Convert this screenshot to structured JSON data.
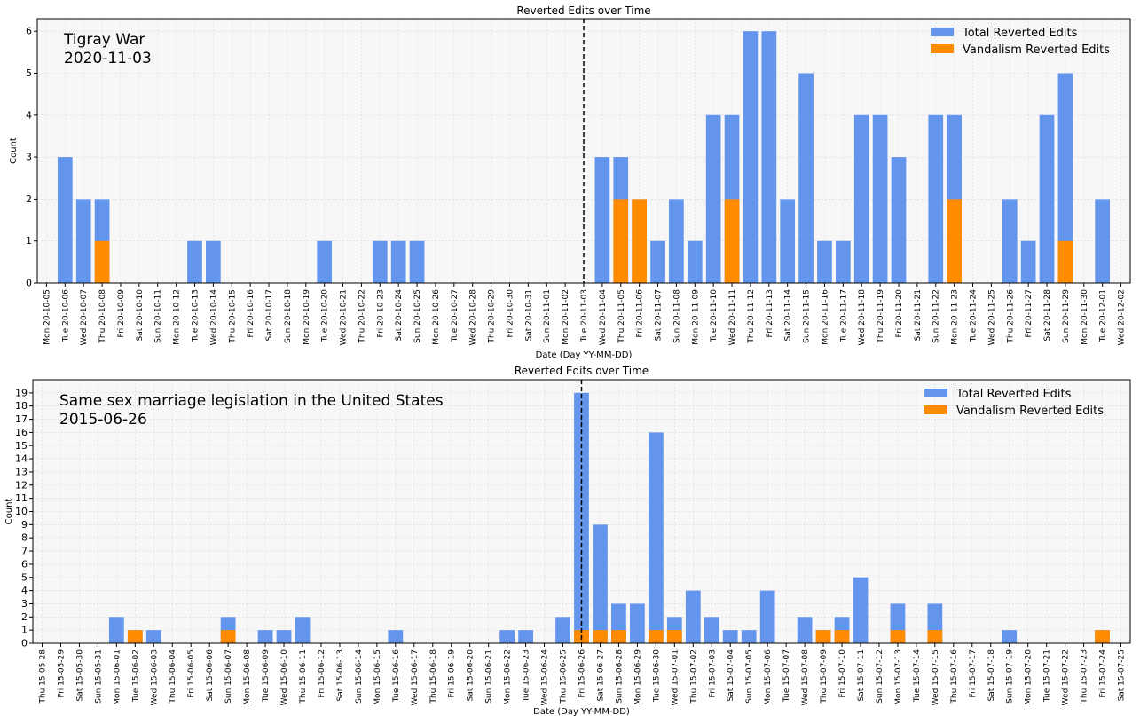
{
  "chart_data": [
    {
      "type": "bar",
      "title": "Reverted Edits over Time",
      "annotation": [
        "Tigray War",
        "2020-11-03"
      ],
      "xlabel": "Date (Day YY-MM-DD)",
      "ylabel": "Count",
      "ylim": [
        0,
        6.3
      ],
      "yticks": [
        0,
        1,
        2,
        3,
        4,
        5,
        6
      ],
      "event_date": "20-11-03",
      "legend_position": "top-right",
      "grid": true,
      "categories": [
        "Mon 20-10-05",
        "Tue 20-10-06",
        "Wed 20-10-07",
        "Thu 20-10-08",
        "Fri 20-10-09",
        "Sat 20-10-10",
        "Sun 20-10-11",
        "Mon 20-10-12",
        "Tue 20-10-13",
        "Wed 20-10-14",
        "Thu 20-10-15",
        "Fri 20-10-16",
        "Sat 20-10-17",
        "Sun 20-10-18",
        "Mon 20-10-19",
        "Tue 20-10-20",
        "Wed 20-10-21",
        "Thu 20-10-22",
        "Fri 20-10-23",
        "Sat 20-10-24",
        "Sun 20-10-25",
        "Mon 20-10-26",
        "Tue 20-10-27",
        "Wed 20-10-28",
        "Thu 20-10-29",
        "Fri 20-10-30",
        "Sat 20-10-31",
        "Sun 20-11-01",
        "Mon 20-11-02",
        "Tue 20-11-03",
        "Wed 20-11-04",
        "Thu 20-11-05",
        "Fri 20-11-06",
        "Sat 20-11-07",
        "Sun 20-11-08",
        "Mon 20-11-09",
        "Tue 20-11-10",
        "Wed 20-11-11",
        "Thu 20-11-12",
        "Fri 20-11-13",
        "Sat 20-11-14",
        "Sun 20-11-15",
        "Mon 20-11-16",
        "Tue 20-11-17",
        "Wed 20-11-18",
        "Thu 20-11-19",
        "Fri 20-11-20",
        "Sat 20-11-21",
        "Sun 20-11-22",
        "Mon 20-11-23",
        "Tue 20-11-24",
        "Wed 20-11-25",
        "Thu 20-11-26",
        "Fri 20-11-27",
        "Sat 20-11-28",
        "Sun 20-11-29",
        "Mon 20-11-30",
        "Tue 20-12-01",
        "Wed 20-12-02"
      ],
      "series": [
        {
          "name": "Total Reverted Edits",
          "color": "#6495ED",
          "values": [
            0,
            3,
            2,
            2,
            0,
            0,
            0,
            0,
            1,
            1,
            0,
            0,
            0,
            0,
            0,
            1,
            0,
            0,
            1,
            1,
            1,
            0,
            0,
            0,
            0,
            0,
            0,
            0,
            0,
            0,
            3,
            3,
            2,
            1,
            2,
            1,
            4,
            4,
            6,
            6,
            2,
            5,
            1,
            1,
            4,
            4,
            3,
            0,
            4,
            4,
            0,
            0,
            2,
            1,
            4,
            5,
            0,
            2,
            0
          ]
        },
        {
          "name": "Vandalism Reverted Edits",
          "color": "#FF8C00",
          "values": [
            0,
            0,
            0,
            1,
            0,
            0,
            0,
            0,
            0,
            0,
            0,
            0,
            0,
            0,
            0,
            0,
            0,
            0,
            0,
            0,
            0,
            0,
            0,
            0,
            0,
            0,
            0,
            0,
            0,
            0,
            0,
            2,
            2,
            0,
            0,
            0,
            0,
            2,
            0,
            0,
            0,
            0,
            0,
            0,
            0,
            0,
            0,
            0,
            0,
            2,
            0,
            0,
            0,
            0,
            0,
            1,
            0,
            0,
            0
          ]
        }
      ]
    },
    {
      "type": "bar",
      "title": "Reverted Edits over Time",
      "annotation": [
        "Same sex marriage legislation in the United States",
        "2015-06-26"
      ],
      "xlabel": "Date (Day YY-MM-DD)",
      "ylabel": "Count",
      "ylim": [
        0,
        20
      ],
      "yticks": [
        0,
        1,
        2,
        3,
        4,
        5,
        6,
        7,
        8,
        9,
        10,
        11,
        12,
        13,
        14,
        15,
        16,
        17,
        18,
        19
      ],
      "event_date": "15-06-26",
      "legend_position": "top-right",
      "grid": true,
      "categories": [
        "Thu 15-05-28",
        "Fri 15-05-29",
        "Sat 15-05-30",
        "Sun 15-05-31",
        "Mon 15-06-01",
        "Tue 15-06-02",
        "Wed 15-06-03",
        "Thu 15-06-04",
        "Fri 15-06-05",
        "Sat 15-06-06",
        "Sun 15-06-07",
        "Mon 15-06-08",
        "Tue 15-06-09",
        "Wed 15-06-10",
        "Thu 15-06-11",
        "Fri 15-06-12",
        "Sat 15-06-13",
        "Sun 15-06-14",
        "Mon 15-06-15",
        "Tue 15-06-16",
        "Wed 15-06-17",
        "Thu 15-06-18",
        "Fri 15-06-19",
        "Sat 15-06-20",
        "Sun 15-06-21",
        "Mon 15-06-22",
        "Tue 15-06-23",
        "Wed 15-06-24",
        "Thu 15-06-25",
        "Fri 15-06-26",
        "Sat 15-06-27",
        "Sun 15-06-28",
        "Mon 15-06-29",
        "Tue 15-06-30",
        "Wed 15-07-01",
        "Thu 15-07-02",
        "Fri 15-07-03",
        "Sat 15-07-04",
        "Sun 15-07-05",
        "Mon 15-07-06",
        "Tue 15-07-07",
        "Wed 15-07-08",
        "Thu 15-07-09",
        "Fri 15-07-10",
        "Sat 15-07-11",
        "Sun 15-07-12",
        "Mon 15-07-13",
        "Tue 15-07-14",
        "Wed 15-07-15",
        "Thu 15-07-16",
        "Fri 15-07-17",
        "Sat 15-07-18",
        "Sun 15-07-19",
        "Mon 15-07-20",
        "Tue 15-07-21",
        "Wed 15-07-22",
        "Thu 15-07-23",
        "Fri 15-07-24",
        "Sat 15-07-25"
      ],
      "series": [
        {
          "name": "Total Reverted Edits",
          "color": "#6495ED",
          "values": [
            0,
            0,
            0,
            0,
            2,
            1,
            1,
            0,
            0,
            0,
            2,
            0,
            1,
            1,
            2,
            0,
            0,
            0,
            0,
            1,
            0,
            0,
            0,
            0,
            0,
            1,
            1,
            0,
            2,
            19,
            9,
            3,
            3,
            16,
            2,
            4,
            2,
            1,
            1,
            4,
            0,
            2,
            1,
            2,
            5,
            0,
            3,
            0,
            3,
            0,
            0,
            0,
            1,
            0,
            0,
            0,
            0,
            1,
            0
          ]
        },
        {
          "name": "Vandalism Reverted Edits",
          "color": "#FF8C00",
          "values": [
            0,
            0,
            0,
            0,
            0,
            1,
            0,
            0,
            0,
            0,
            1,
            0,
            0,
            0,
            0,
            0,
            0,
            0,
            0,
            0,
            0,
            0,
            0,
            0,
            0,
            0,
            0,
            0,
            0,
            1,
            1,
            1,
            0,
            1,
            1,
            0,
            0,
            0,
            0,
            0,
            0,
            0,
            1,
            1,
            0,
            0,
            1,
            0,
            1,
            0,
            0,
            0,
            0,
            0,
            0,
            0,
            0,
            1,
            0
          ]
        }
      ]
    }
  ]
}
